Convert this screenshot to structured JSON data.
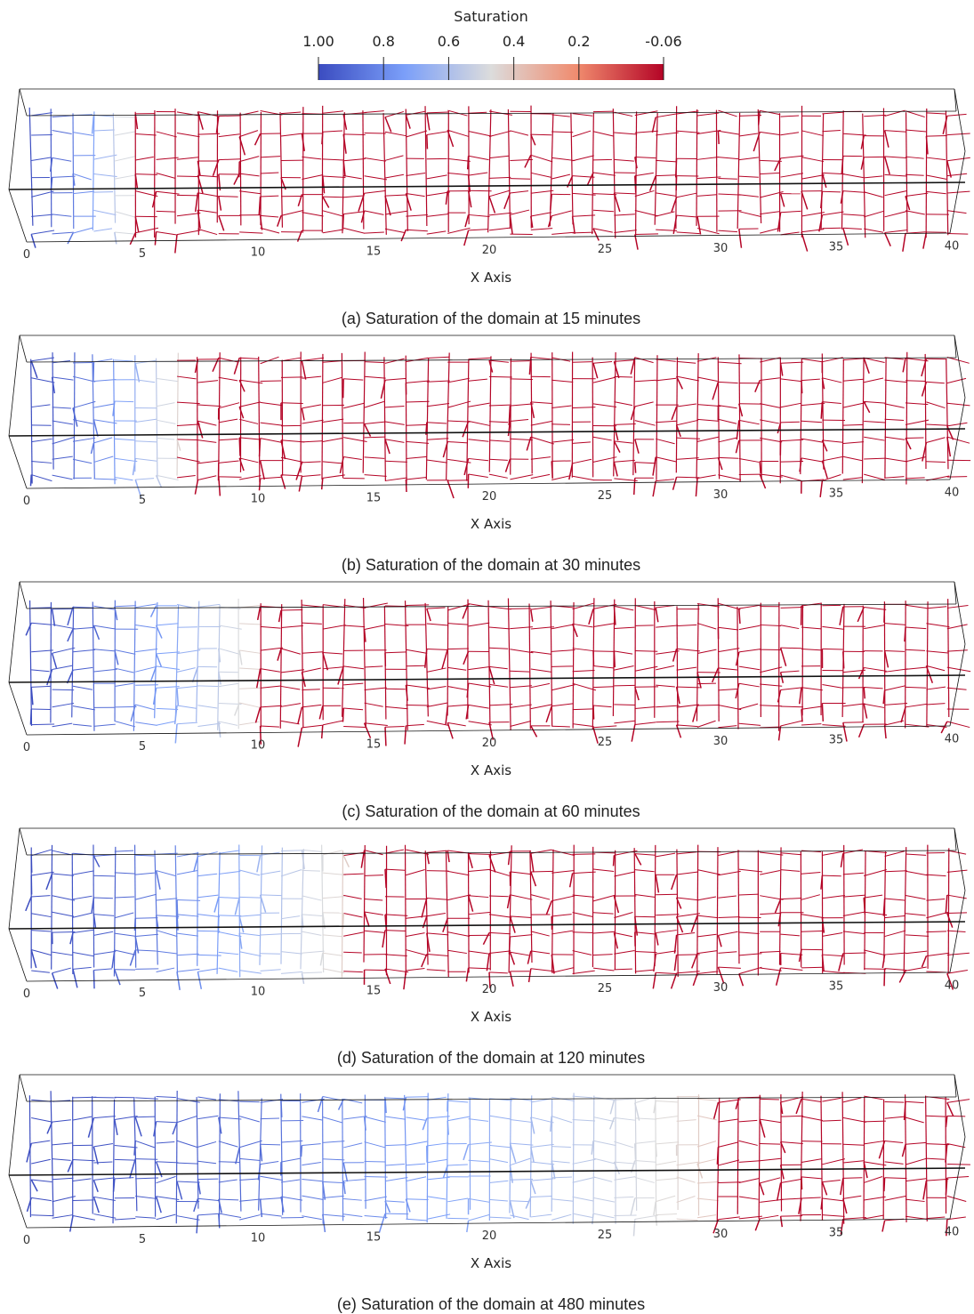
{
  "colorbar": {
    "title": "Saturation",
    "ticks": [
      {
        "value": 1,
        "label": "1.00"
      },
      0.8,
      0.6,
      0.4,
      0.2,
      -0.06
    ]
  },
  "x_axis": {
    "title": "X Axis",
    "ticks": [
      0,
      5,
      10,
      15,
      20,
      25,
      30,
      35,
      40
    ]
  },
  "panels": [
    {
      "caption": "(a) Saturation of the domain at 15 minutes",
      "front": 4.7
    },
    {
      "caption": "(b) Saturation of the domain at 30 minutes",
      "front": 6.8
    },
    {
      "caption": "(c) Saturation of the domain at 60 minutes",
      "front": 10
    },
    {
      "caption": "(d) Saturation of the domain at 120 minutes",
      "front": 14
    },
    {
      "caption": "(e) Saturation of the domain at 480 minutes",
      "front": 29.5
    }
  ]
}
